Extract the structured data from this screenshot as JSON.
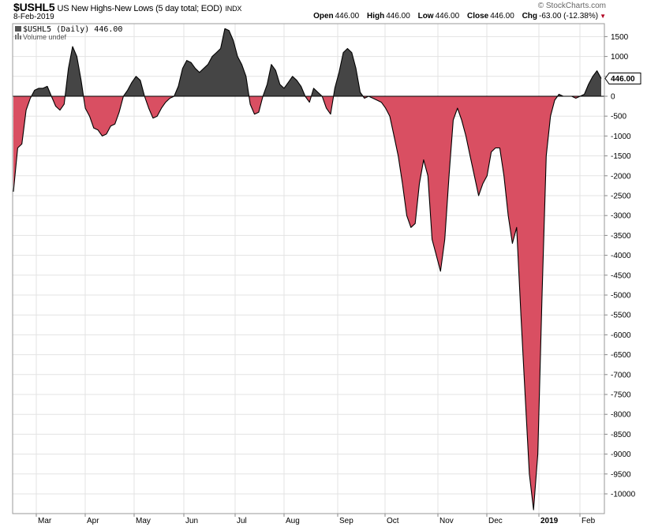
{
  "header": {
    "symbol": "$USHL5",
    "description": "US New Highs-New Lows (5 day total; EOD)",
    "exchange": "INDX",
    "date": "8-Feb-2019",
    "credit": "© StockCharts.com",
    "open_label": "Open",
    "open": "446.00",
    "high_label": "High",
    "high": "446.00",
    "low_label": "Low",
    "low": "446.00",
    "close_label": "Close",
    "close": "446.00",
    "chg_label": "Chg",
    "chg": "-63.00 (-12.38%)",
    "chg_marker": "▼"
  },
  "legend": {
    "series": "$USHL5 (Daily) 446.00",
    "volume": "Volume undef"
  },
  "last_value_label": "446.00",
  "colors": {
    "positive_fill": "#454545",
    "negative_fill": "#d94f62",
    "line": "#000000",
    "grid": "#e3e3e3"
  },
  "chart_data": {
    "type": "area",
    "title": "US New Highs-New Lows (5 day total; EOD)",
    "x_ticks": [
      "Mar",
      "Apr",
      "May",
      "Jun",
      "Jul",
      "Aug",
      "Sep",
      "Oct",
      "Nov",
      "Dec",
      "2019",
      "Feb"
    ],
    "y_ticks": [
      "1500",
      "1000",
      "500",
      "0",
      "-500",
      "-1000",
      "-1500",
      "-2000",
      "-2500",
      "-3000",
      "-3500",
      "-4000",
      "-4500",
      "-5000",
      "-5500",
      "-6000",
      "-6500",
      "-7000",
      "-7500",
      "-8000",
      "-8500",
      "-9000",
      "-9500",
      "-10000"
    ],
    "ylim": [
      -10300,
      1800
    ],
    "grid": true,
    "series": [
      {
        "values": [
          -2400,
          -1300,
          -1200,
          -350,
          -50,
          150,
          200,
          200,
          250,
          0,
          -250,
          -350,
          -200,
          700,
          1250,
          1000,
          400,
          -300,
          -500,
          -800,
          -850,
          -1000,
          -950,
          -750,
          -700,
          -400,
          0,
          150,
          350,
          500,
          400,
          0,
          -300,
          -550,
          -500,
          -300,
          -150,
          -50,
          0,
          250,
          700,
          900,
          850,
          700,
          600,
          700,
          800,
          1000,
          1100,
          1200,
          1700,
          1650,
          1400,
          1000,
          800,
          500,
          -200,
          -450,
          -400,
          0,
          300,
          800,
          650,
          300,
          200,
          350,
          500,
          400,
          250,
          0,
          -150,
          200,
          100,
          0,
          -300,
          -450,
          200,
          600,
          1100,
          1200,
          1100,
          700,
          100,
          -50,
          0,
          -50,
          -100,
          -150,
          -300,
          -500,
          -1000,
          -1500,
          -2200,
          -3000,
          -3300,
          -3200,
          -2200,
          -1600,
          -2000,
          -3600,
          -4000,
          -4400,
          -3600,
          -2000,
          -600,
          -300,
          -600,
          -1000,
          -1500,
          -2000,
          -2500,
          -2200,
          -2000,
          -1400,
          -1300,
          -1300,
          -2000,
          -3000,
          -3700,
          -3300,
          -5500,
          -7500,
          -9500,
          -10400,
          -9000,
          -5000,
          -1500,
          -500,
          -100,
          50,
          0,
          0,
          0,
          -50,
          0,
          50,
          300,
          500,
          640,
          446
        ]
      }
    ]
  }
}
